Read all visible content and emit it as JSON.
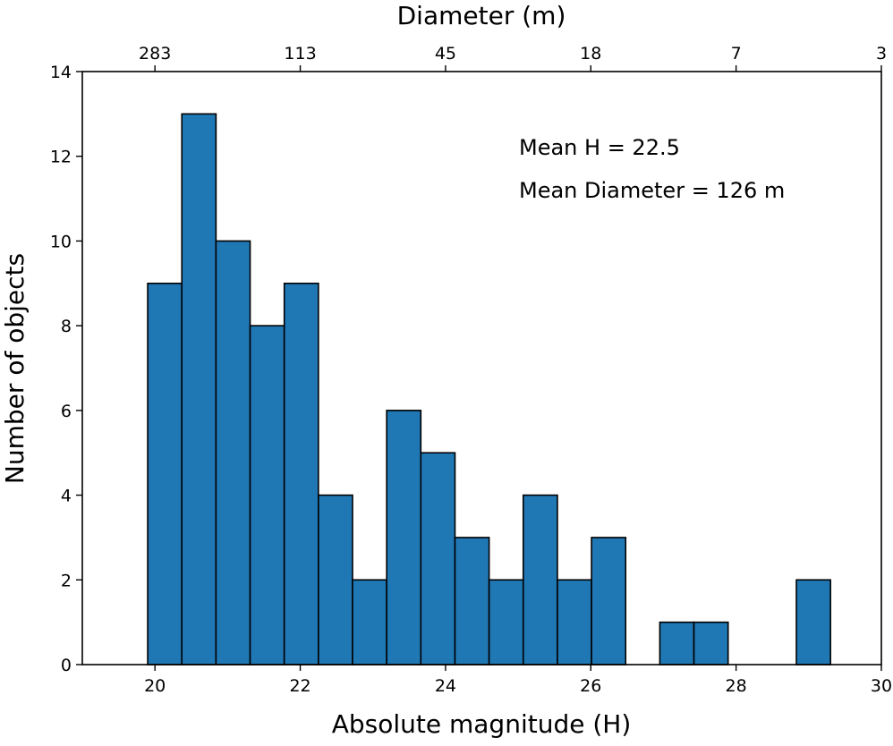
{
  "chart_data": {
    "type": "bar",
    "title": "",
    "xlabel": "Absolute magnitude (H)",
    "ylabel": "Number of objects",
    "top_xlabel": "Diameter (m)",
    "xlim": [
      19,
      30
    ],
    "ylim": [
      0,
      14
    ],
    "bar_color": "#1f77b4",
    "edge_color": "#000000",
    "grid": false,
    "bin_edges": [
      19.9,
      20.37,
      20.84,
      21.31,
      21.78,
      22.25,
      22.72,
      23.19,
      23.66,
      24.13,
      24.6,
      25.07,
      25.54,
      26.01,
      26.48,
      26.95,
      27.42,
      27.89,
      28.36,
      28.83,
      29.3
    ],
    "values": [
      9,
      13,
      10,
      8,
      9,
      4,
      2,
      6,
      5,
      3,
      2,
      4,
      2,
      3,
      0,
      1,
      1,
      0,
      0,
      2
    ],
    "x_ticks": [
      {
        "value": 20,
        "label": "20"
      },
      {
        "value": 22,
        "label": "22"
      },
      {
        "value": 24,
        "label": "24"
      },
      {
        "value": 26,
        "label": "26"
      },
      {
        "value": 28,
        "label": "28"
      },
      {
        "value": 30,
        "label": "30"
      }
    ],
    "y_ticks": [
      {
        "value": 0,
        "label": "0"
      },
      {
        "value": 2,
        "label": "2"
      },
      {
        "value": 4,
        "label": "4"
      },
      {
        "value": 6,
        "label": "6"
      },
      {
        "value": 8,
        "label": "8"
      },
      {
        "value": 10,
        "label": "10"
      },
      {
        "value": 12,
        "label": "12"
      },
      {
        "value": 14,
        "label": "14"
      }
    ],
    "top_ticks": [
      {
        "value": 20,
        "label": "283"
      },
      {
        "value": 22,
        "label": "113"
      },
      {
        "value": 24,
        "label": "45"
      },
      {
        "value": 26,
        "label": "18"
      },
      {
        "value": 28,
        "label": "7"
      },
      {
        "value": 30,
        "label": "3"
      }
    ],
    "annotations": [
      "Mean H = 22.5",
      "Mean Diameter = 126 m"
    ]
  }
}
